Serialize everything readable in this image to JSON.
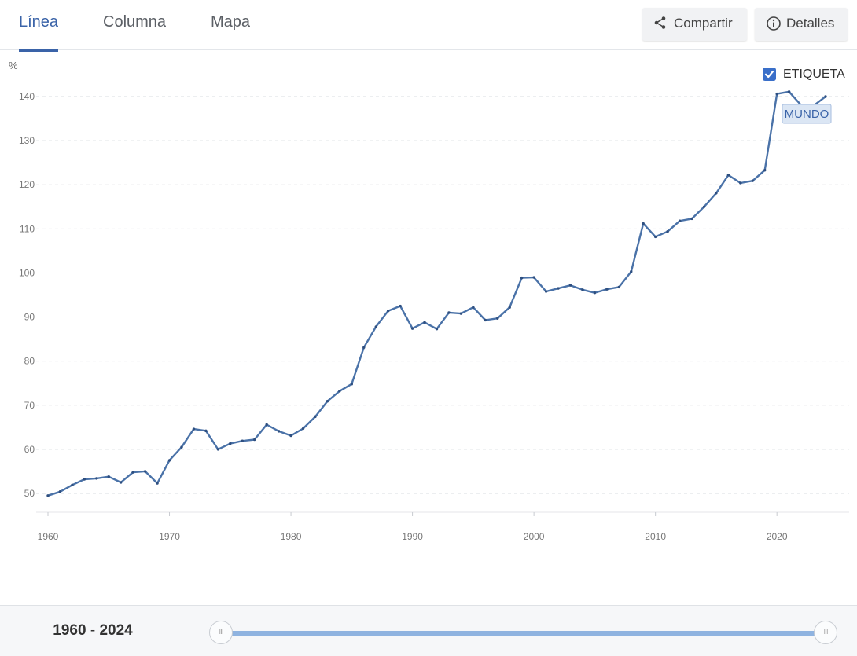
{
  "tabs": [
    {
      "label": "Línea",
      "active": true
    },
    {
      "label": "Columna",
      "active": false
    },
    {
      "label": "Mapa",
      "active": false
    }
  ],
  "actions": {
    "share_label": "Compartir",
    "details_label": "Detalles"
  },
  "legend": {
    "label": "ETIQUETA",
    "checked": true
  },
  "range": {
    "start": "1960",
    "separator": "-",
    "end": "2024"
  },
  "slider": {
    "handle_glyph": "III"
  },
  "colors": {
    "line": "#4a72a8",
    "accent": "#3a63a8",
    "slider": "#8fb3e0"
  },
  "chart_data": {
    "type": "line",
    "ylabel": "%",
    "ylim": [
      45,
      145
    ],
    "xlim": [
      1960,
      2024
    ],
    "y_ticks": [
      50,
      60,
      70,
      80,
      90,
      100,
      110,
      120,
      130,
      140
    ],
    "x_ticks": [
      1960,
      1970,
      1980,
      1990,
      2000,
      2010,
      2020
    ],
    "grid": true,
    "series": [
      {
        "name": "MUNDO",
        "x": [
          1960,
          1961,
          1962,
          1963,
          1964,
          1965,
          1966,
          1967,
          1968,
          1969,
          1970,
          1971,
          1972,
          1973,
          1974,
          1975,
          1976,
          1977,
          1978,
          1979,
          1980,
          1981,
          1982,
          1983,
          1984,
          1985,
          1986,
          1987,
          1988,
          1989,
          1990,
          1991,
          1992,
          1993,
          1994,
          1995,
          1996,
          1997,
          1998,
          1999,
          2000,
          2001,
          2002,
          2003,
          2004,
          2005,
          2006,
          2007,
          2008,
          2009,
          2010,
          2011,
          2012,
          2013,
          2014,
          2015,
          2016,
          2017,
          2018,
          2019,
          2020,
          2021,
          2022,
          2023,
          2024
        ],
        "values": [
          49.5,
          50.4,
          51.9,
          53.2,
          53.4,
          53.8,
          52.5,
          54.8,
          55.0,
          52.3,
          57.5,
          60.5,
          64.6,
          64.2,
          60.0,
          61.3,
          61.9,
          62.2,
          65.6,
          64.1,
          63.1,
          64.7,
          67.4,
          70.9,
          73.2,
          74.8,
          83.1,
          87.8,
          91.4,
          92.5,
          87.4,
          88.8,
          87.3,
          91.0,
          90.8,
          92.2,
          89.3,
          89.7,
          92.2,
          98.9,
          99.0,
          95.8,
          96.5,
          97.2,
          96.2,
          95.5,
          96.3,
          96.8,
          100.3,
          111.2,
          108.2,
          109.4,
          111.8,
          112.3,
          115.0,
          118.1,
          122.2,
          120.4,
          120.9,
          123.3,
          140.6,
          141.1,
          138.0,
          137.9,
          140.0
        ]
      }
    ]
  }
}
